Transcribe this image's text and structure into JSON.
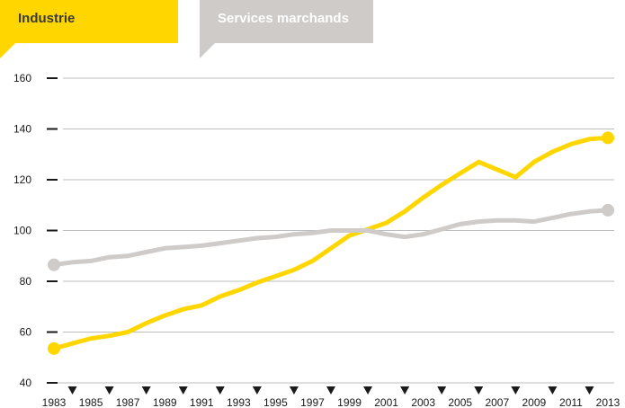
{
  "legend": {
    "industrie": "Industrie",
    "services": "Services marchands"
  },
  "colors": {
    "industrie": "#ffd600",
    "services": "#cfcbc8",
    "grid": "#bdbdbd",
    "axis_text": "#1a1a1a"
  },
  "chart_data": {
    "type": "line",
    "x": [
      1983,
      1984,
      1985,
      1986,
      1987,
      1988,
      1989,
      1990,
      1991,
      1992,
      1993,
      1994,
      1995,
      1996,
      1997,
      1998,
      1999,
      2000,
      2001,
      2002,
      2003,
      2004,
      2005,
      2006,
      2007,
      2008,
      2009,
      2010,
      2011,
      2012,
      2013
    ],
    "series": [
      {
        "name": "Industrie",
        "color": "#ffd600",
        "values": [
          53.5,
          55.5,
          57.5,
          58.5,
          60,
          63.5,
          66.5,
          69,
          70.5,
          74,
          76.5,
          79.5,
          82,
          84.5,
          88,
          93,
          98,
          100.5,
          103,
          107.5,
          113,
          118,
          122.5,
          127,
          124,
          121,
          127,
          131,
          134,
          136,
          136.5
        ]
      },
      {
        "name": "Services marchands",
        "color": "#cfcbc8",
        "values": [
          86.5,
          87.5,
          88,
          89.5,
          90,
          91.5,
          93,
          93.5,
          94,
          95,
          96,
          97,
          97.5,
          98.5,
          99,
          100,
          100,
          100,
          98.5,
          97.5,
          98.5,
          100.5,
          102.5,
          103.5,
          104,
          104,
          103.5,
          105,
          106.5,
          107.5,
          108
        ]
      }
    ],
    "ylim": [
      40,
      160
    ],
    "yticks": [
      "40",
      "60",
      "80",
      "100",
      "120",
      "140",
      "160"
    ],
    "xtick_labels": [
      "1983",
      "1985",
      "1987",
      "1989",
      "1991",
      "1993",
      "1995",
      "1997",
      "1999",
      "2001",
      "2003",
      "2005",
      "2007",
      "2009",
      "2011",
      "2013"
    ],
    "grid": true
  }
}
